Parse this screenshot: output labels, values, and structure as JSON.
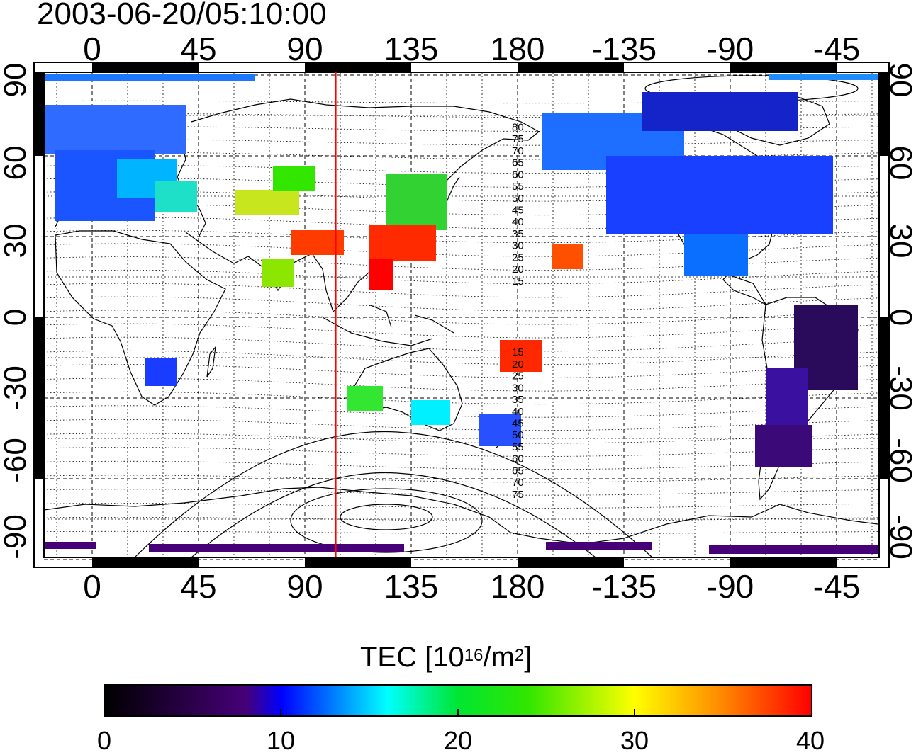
{
  "timestamp": "2003-06-20/05:10:00",
  "map": {
    "top_lon_labels": [
      "0",
      "45",
      "90",
      "135",
      "180",
      "-135",
      "-90",
      "-45"
    ],
    "bottom_lon_labels": [
      "0",
      "45",
      "90",
      "135",
      "180",
      "-135",
      "-90",
      "-45"
    ],
    "lat_labels": [
      "90",
      "60",
      "30",
      "0",
      "-30",
      "-60",
      "-90"
    ],
    "contour_labels_north": [
      "80",
      "75",
      "70",
      "65",
      "60",
      "55",
      "50",
      "45",
      "40",
      "35",
      "30",
      "25",
      "20",
      "15"
    ],
    "contour_labels_south": [
      "15",
      "20",
      "25",
      "30",
      "35",
      "40",
      "45",
      "50",
      "55",
      "60",
      "65",
      "70",
      "75"
    ],
    "red_meridian_lon": 103,
    "colors": {
      "meridian": "#ff0000",
      "grid": "#000000",
      "coast": "#000000"
    }
  },
  "colorbar": {
    "title_prefix": "TEC  [10",
    "title_exp1": "16",
    "title_mid": "/m",
    "title_exp2": "2",
    "title_suffix": "]",
    "ticks": [
      "0",
      "10",
      "20",
      "30",
      "40"
    ],
    "range": [
      0,
      40
    ],
    "colormap": "jet"
  }
}
